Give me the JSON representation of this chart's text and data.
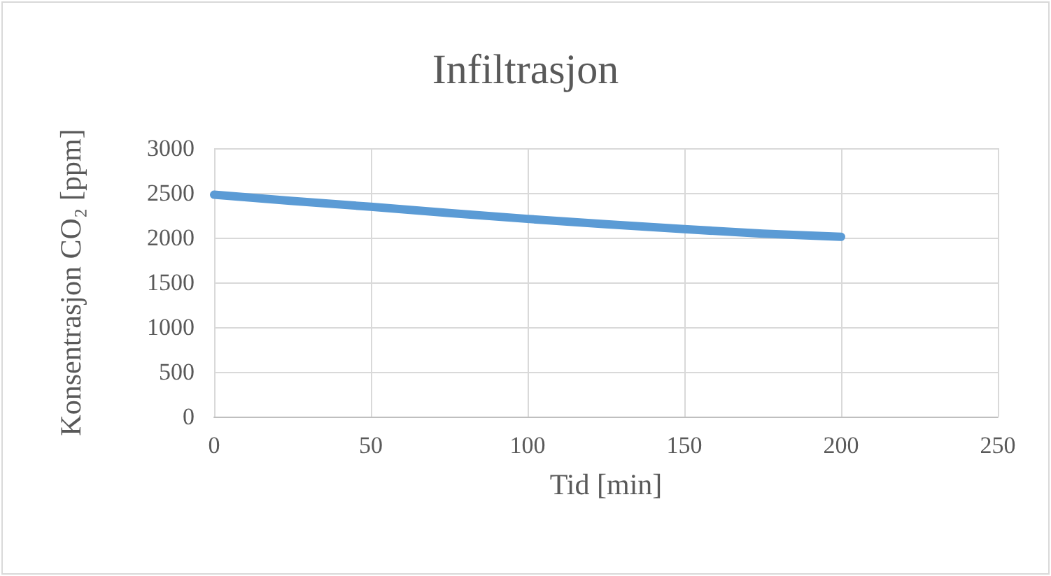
{
  "chart_data": {
    "type": "line",
    "title": "Infiltrasjon",
    "xlabel": "Tid [min]",
    "ylabel": "Konsentrasjon CO₂ [ppm]",
    "x": [
      0,
      25,
      50,
      75,
      100,
      125,
      150,
      175,
      200
    ],
    "series": [
      {
        "color": "#5b9bd5",
        "values": [
          2480,
          2410,
          2345,
          2275,
          2210,
          2150,
          2095,
          2045,
          2010
        ]
      }
    ],
    "xlim": [
      0,
      250
    ],
    "xticks": [
      0,
      50,
      100,
      150,
      200,
      250
    ],
    "ylim": [
      0,
      3000
    ],
    "yticks": [
      0,
      500,
      1000,
      1500,
      2000,
      2500,
      3000
    ],
    "grid": true,
    "marker": "none",
    "line_style": "solid"
  }
}
